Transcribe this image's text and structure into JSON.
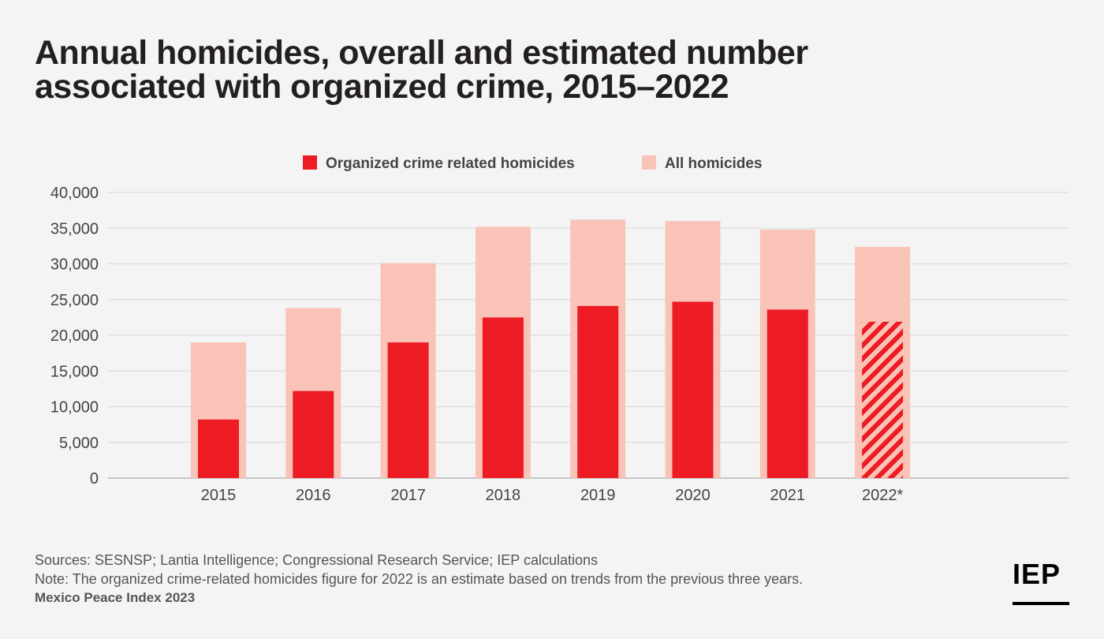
{
  "title": {
    "line1": "Annual homicides, overall and estimated number",
    "line2": "associated with organized crime, 2015–2022"
  },
  "chart_data": {
    "type": "bar",
    "categories": [
      "2015",
      "2016",
      "2017",
      "2018",
      "2019",
      "2020",
      "2021",
      "2022*"
    ],
    "series": [
      {
        "name": "All homicides",
        "values": [
          19000,
          23800,
          30100,
          35200,
          36200,
          36000,
          34800,
          32400
        ],
        "color": "#f9c4b7"
      },
      {
        "name": "Organized crime related homicides",
        "values": [
          8200,
          12200,
          19000,
          22500,
          24100,
          24700,
          23600,
          21900
        ],
        "color": "#ed1c24",
        "estimated_categories": [
          "2022*"
        ]
      }
    ],
    "ylim": [
      0,
      40000
    ],
    "yticks": [
      "0",
      "5,000",
      "10,000",
      "15,000",
      "20,000",
      "25,000",
      "30,000",
      "35,000",
      "40,000"
    ],
    "grid": true,
    "legend_placement": "top-center",
    "xlabel": "",
    "ylabel": ""
  },
  "footer": {
    "sources": "Sources: SESNSP; Lantia Intelligence; Congressional Research Service; IEP calculations",
    "note": "Note: The organized crime-related homicides figure for 2022 is an estimate based on trends from the previous three years.",
    "publication": "Mexico Peace Index 2023"
  },
  "logo": {
    "text": "IEP"
  }
}
